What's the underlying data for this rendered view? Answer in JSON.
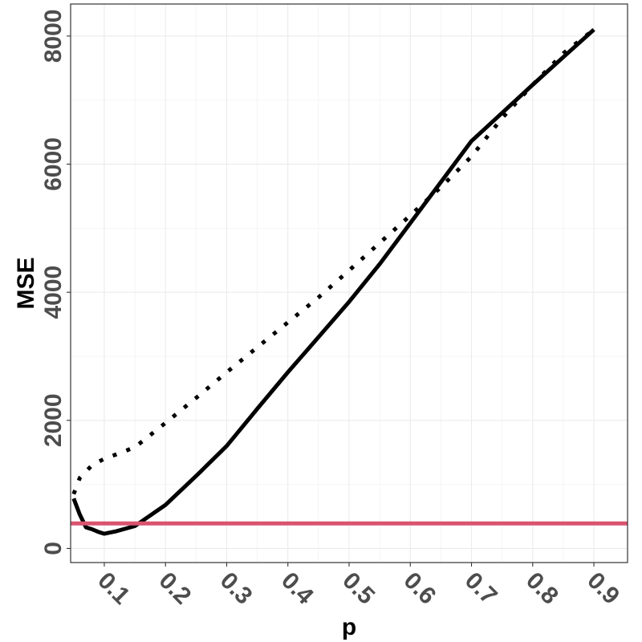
{
  "chart_data": {
    "type": "line",
    "title": "",
    "xlabel": "p",
    "ylabel": "MSE",
    "xlim": [
      0.045,
      0.955
    ],
    "ylim": [
      -220,
      8500
    ],
    "x_ticks": [
      0.1,
      0.2,
      0.3,
      0.4,
      0.5,
      0.6,
      0.7,
      0.8,
      0.9
    ],
    "x_tick_labels": [
      "0.1",
      "0.2",
      "0.3",
      "0.4",
      "0.5",
      "0.6",
      "0.7",
      "0.8",
      "0.9"
    ],
    "y_ticks": [
      0,
      2000,
      4000,
      6000,
      8000
    ],
    "y_tick_labels": [
      "0",
      "2000",
      "4000",
      "6000",
      "8000"
    ],
    "grid": true,
    "legend": "none",
    "series": [
      {
        "style": "solid",
        "color": "#000000",
        "x": [
          0.05,
          0.06,
          0.07,
          0.08,
          0.09,
          0.1,
          0.12,
          0.15,
          0.2,
          0.25,
          0.3,
          0.35,
          0.4,
          0.45,
          0.5,
          0.55,
          0.6,
          0.65,
          0.7,
          0.75,
          0.8,
          0.85,
          0.9
        ],
        "y": [
          780,
          530,
          330,
          300,
          260,
          230,
          270,
          350,
          680,
          1130,
          1600,
          2180,
          2750,
          3300,
          3850,
          4440,
          5080,
          5720,
          6360,
          6800,
          7240,
          7670,
          8100
        ]
      },
      {
        "style": "dotted",
        "color": "#000000",
        "x": [
          0.05,
          0.06,
          0.08,
          0.1,
          0.12,
          0.15,
          0.2,
          0.25,
          0.3,
          0.35,
          0.4,
          0.45,
          0.5,
          0.55,
          0.6,
          0.65,
          0.7,
          0.75,
          0.8,
          0.85,
          0.9
        ],
        "y": [
          850,
          1100,
          1300,
          1400,
          1470,
          1580,
          1960,
          2350,
          2750,
          3140,
          3530,
          3920,
          4340,
          4770,
          5200,
          5640,
          6120,
          6720,
          7240,
          7730,
          8100
        ]
      },
      {
        "style": "hline",
        "color": "#d9546e",
        "x": [
          0.045,
          0.955
        ],
        "y": [
          390,
          390
        ]
      }
    ]
  }
}
